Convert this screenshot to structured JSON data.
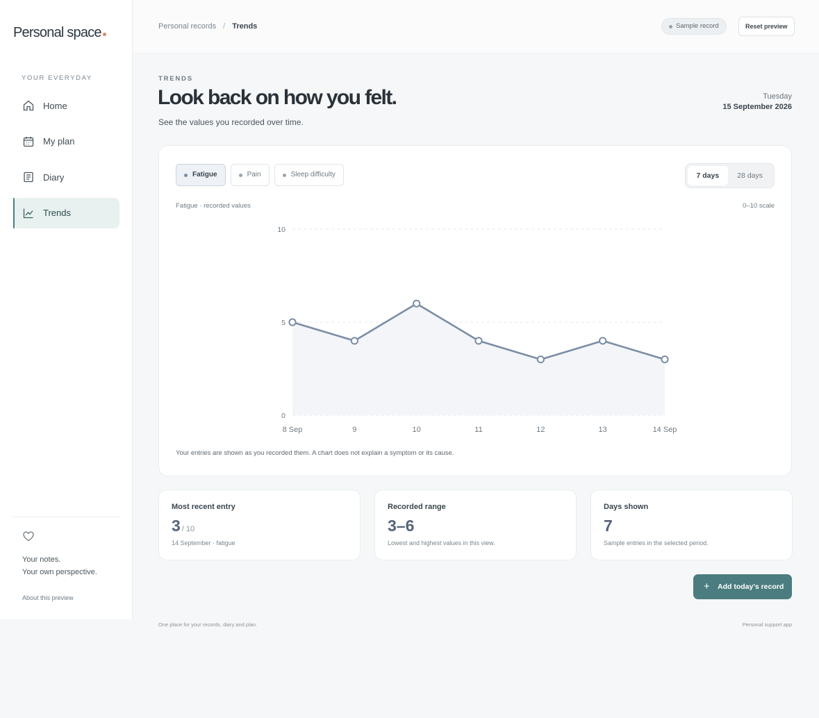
{
  "app": {
    "brand": "Personal space",
    "nav_heading": "YOUR EVERYDAY",
    "nav": [
      {
        "label": "Home",
        "icon": "home-icon"
      },
      {
        "label": "My plan",
        "icon": "calendar-icon"
      },
      {
        "label": "Diary",
        "icon": "book-icon"
      },
      {
        "label": "Trends",
        "icon": "chart-icon",
        "active": true
      }
    ],
    "notes_line1": "Your notes.",
    "notes_line2": "Your own perspective.",
    "about": "About this preview"
  },
  "topbar": {
    "crumb_root": "Personal records",
    "crumb_sep": "/",
    "crumb_current": "Trends",
    "sample_badge": "Sample record",
    "reset_button": "Reset preview"
  },
  "header": {
    "eyebrow": "TRENDS",
    "title": "Look back on how you felt.",
    "subtitle": "See the values you recorded over time.",
    "day": "Tuesday",
    "date": "15 September 2026"
  },
  "filters": {
    "chips": [
      {
        "label": "Fatigue",
        "active": true
      },
      {
        "label": "Pain",
        "active": false
      },
      {
        "label": "Sleep difficulty",
        "active": false
      }
    ],
    "ranges": [
      {
        "label": "7 days",
        "active": true
      },
      {
        "label": "28 days",
        "active": false
      }
    ]
  },
  "chart_caption": "Fatigue · recorded values",
  "chart_scale": "0–10 scale",
  "chart_note": "Your entries are shown as you recorded them. A chart does not explain a symptom or its cause.",
  "chart_data": {
    "type": "line",
    "categories": [
      "8 Sep",
      "9",
      "10",
      "11",
      "12",
      "13",
      "14 Sep"
    ],
    "series": [
      {
        "name": "Fatigue",
        "values": [
          5,
          4,
          6,
          4,
          3,
          4,
          3
        ]
      }
    ],
    "ylim": [
      0,
      10
    ],
    "yticks": [
      "0",
      "5",
      "10"
    ],
    "grid": true,
    "line_color": "#7b8da6",
    "fill_color": "#f3f5f8"
  },
  "stats": [
    {
      "label": "Most recent entry",
      "value": "3",
      "suffix": "/ 10",
      "desc": "14 September · fatigue"
    },
    {
      "label": "Recorded range",
      "value": "3–6",
      "suffix": "",
      "desc": "Lowest and highest values in this view."
    },
    {
      "label": "Days shown",
      "value": "7",
      "suffix": "",
      "desc": "Sample entries in the selected period."
    }
  ],
  "add_button": "Add today's record",
  "add_button_icon": "plus-icon",
  "footer_left": "One place for your records, diary and plan.",
  "footer_right": "Personal support app",
  "colors": {
    "accent": "#4b7c7f",
    "brand_dot": "#d9896a"
  }
}
